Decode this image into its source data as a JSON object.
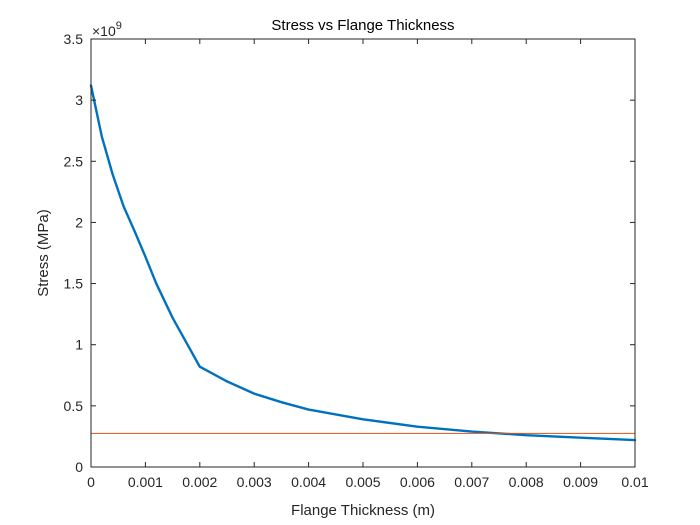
{
  "chart_data": {
    "type": "line",
    "title": "Stress vs Flange Thickness",
    "xlabel": "Flange Thickness (m)",
    "ylabel": "Stress (MPa)",
    "y_multiplier_label": "×10",
    "y_multiplier_exponent": "9",
    "xlim": [
      0,
      0.01
    ],
    "ylim": [
      0,
      3.5
    ],
    "x_ticks": [
      0,
      0.001,
      0.002,
      0.003,
      0.004,
      0.005,
      0.006,
      0.007,
      0.008,
      0.009,
      0.01
    ],
    "x_tick_labels": [
      "0",
      "0.001",
      "0.002",
      "0.003",
      "0.004",
      "0.005",
      "0.006",
      "0.007",
      "0.008",
      "0.009",
      "0.01"
    ],
    "y_ticks": [
      0,
      0.5,
      1,
      1.5,
      2,
      2.5,
      3,
      3.5
    ],
    "y_tick_labels": [
      "0",
      "0.5",
      "1",
      "1.5",
      "2",
      "2.5",
      "3",
      "3.5"
    ],
    "grid": false,
    "series": [
      {
        "color": "#0072BD",
        "x": [
          0,
          0.0002,
          0.0004,
          0.0006,
          0.0008,
          0.001,
          0.0012,
          0.0015,
          0.002,
          0.0025,
          0.003,
          0.0035,
          0.004,
          0.005,
          0.006,
          0.007,
          0.008,
          0.009,
          0.01
        ],
        "values": [
          3.12,
          2.7,
          2.39,
          2.13,
          1.93,
          1.72,
          1.5,
          1.22,
          0.82,
          0.7,
          0.6,
          0.53,
          0.47,
          0.39,
          0.33,
          0.29,
          0.26,
          0.24,
          0.22
        ]
      },
      {
        "color": "#D95319",
        "x": [
          0,
          0.01
        ],
        "values": [
          0.275,
          0.275
        ]
      }
    ]
  }
}
